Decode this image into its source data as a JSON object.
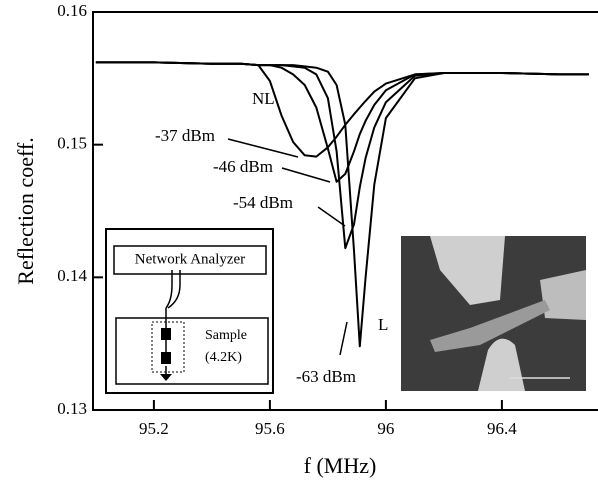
{
  "chart_data": {
    "type": "line",
    "x_label": "f (MHz)",
    "y_label": "Reflection coeff.",
    "x": [
      95.0,
      95.2,
      95.4,
      95.5,
      95.56,
      95.6,
      95.64,
      95.68,
      95.72,
      95.76,
      95.8,
      95.83,
      95.86,
      95.89,
      95.91,
      95.93,
      95.96,
      96.0,
      96.1,
      96.2,
      96.4,
      96.6,
      96.7
    ],
    "series": [
      {
        "name": "-37 dBm",
        "color": "#000000",
        "values": [
          0.1562,
          0.1562,
          0.1561,
          0.1561,
          0.156,
          0.1548,
          0.1522,
          0.1502,
          0.1492,
          0.1491,
          0.1498,
          0.1506,
          0.1515,
          0.1523,
          0.1528,
          0.1533,
          0.154,
          0.1546,
          0.1553,
          0.1554,
          0.1554,
          0.1553,
          0.1553
        ]
      },
      {
        "name": "-46 dBm",
        "color": "#000000",
        "values": [
          0.1562,
          0.1562,
          0.1561,
          0.1561,
          0.156,
          0.156,
          0.1558,
          0.1553,
          0.1545,
          0.1528,
          0.1497,
          0.1472,
          0.1478,
          0.1495,
          0.1508,
          0.1518,
          0.153,
          0.1541,
          0.1553,
          0.1554,
          0.1554,
          0.1553,
          0.1553
        ]
      },
      {
        "name": "-54 dBm",
        "color": "#000000",
        "values": [
          0.1562,
          0.1562,
          0.1561,
          0.1561,
          0.156,
          0.156,
          0.156,
          0.1559,
          0.1558,
          0.1553,
          0.1535,
          0.1495,
          0.1422,
          0.144,
          0.1468,
          0.149,
          0.1513,
          0.1532,
          0.1552,
          0.1554,
          0.1554,
          0.1553,
          0.1553
        ]
      },
      {
        "name": "-63 dBm",
        "color": "#000000",
        "values": [
          0.1562,
          0.1562,
          0.1561,
          0.1561,
          0.156,
          0.156,
          0.156,
          0.156,
          0.1559,
          0.1558,
          0.1555,
          0.1545,
          0.1515,
          0.142,
          0.1348,
          0.14,
          0.147,
          0.152,
          0.155,
          0.1554,
          0.1554,
          0.1553,
          0.1553
        ]
      }
    ],
    "xlim": [
      94.99,
      96.73
    ],
    "ylim": [
      0.13,
      0.16
    ],
    "xticks": [
      95.2,
      95.6,
      96.0,
      96.4
    ],
    "yticks": [
      0.13,
      0.14,
      0.15,
      0.16
    ],
    "annotations": {
      "nl": "NL",
      "l": "L"
    },
    "inset": {
      "instrument": "Network Analyzer",
      "sample": "Sample",
      "temperature": "(4.2K)"
    }
  }
}
